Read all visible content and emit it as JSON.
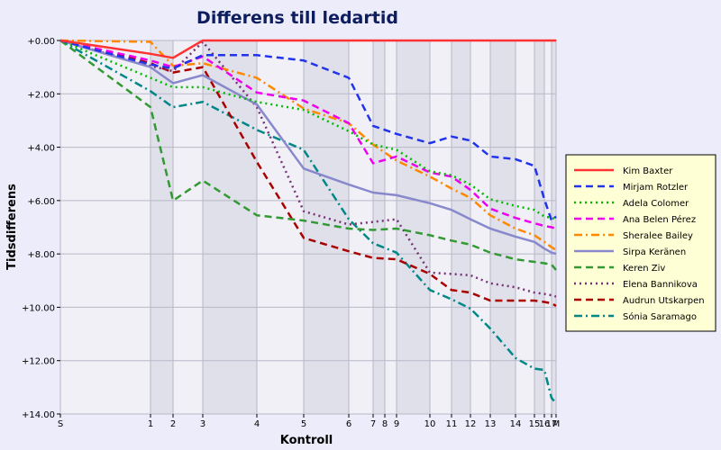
{
  "chart_data": {
    "type": "line",
    "title": "Differens till ledartid",
    "xlabel": "Kontroll",
    "ylabel": "Tidsdifferens",
    "x_ticks": [
      {
        "label": "S",
        "value": 0
      },
      {
        "label": "1",
        "value": 100
      },
      {
        "label": "2",
        "value": 125
      },
      {
        "label": "3",
        "value": 158
      },
      {
        "label": "4",
        "value": 218
      },
      {
        "label": "5",
        "value": 270
      },
      {
        "label": "6",
        "value": 320
      },
      {
        "label": "7",
        "value": 347
      },
      {
        "label": "8",
        "value": 360
      },
      {
        "label": "9",
        "value": 373
      },
      {
        "label": "10",
        "value": 410
      },
      {
        "label": "11",
        "value": 434
      },
      {
        "label": "12",
        "value": 455
      },
      {
        "label": "13",
        "value": 477
      },
      {
        "label": "14",
        "value": 505
      },
      {
        "label": "15",
        "value": 526
      },
      {
        "label": "16",
        "value": 537
      },
      {
        "label": "17",
        "value": 545
      },
      {
        "label": "M",
        "value": 550
      }
    ],
    "y_ticks": [
      "+0.00",
      "+2.00",
      "+4.00",
      "+6.00",
      "+8.00",
      "+10.00",
      "+12.00",
      "+14.00"
    ],
    "ylim": [
      0,
      14
    ],
    "xlim": [
      0,
      550
    ],
    "y_inverted": true,
    "grid": true,
    "legend_position": "right",
    "series": [
      {
        "name": "Kim Baxter",
        "color": "#ff3333",
        "style": "solid",
        "x": [
          0,
          100,
          125,
          158,
          550
        ],
        "y": [
          0,
          0.5,
          0.65,
          0,
          0
        ]
      },
      {
        "name": "Mirjam Rotzler",
        "color": "#2233ee",
        "style": "dash",
        "x": [
          0,
          100,
          125,
          158,
          218,
          270,
          320,
          347,
          373,
          410,
          434,
          455,
          477,
          505,
          526,
          537,
          545,
          550
        ],
        "y": [
          0,
          0.9,
          1.05,
          0.55,
          0.55,
          0.75,
          1.4,
          3.2,
          3.5,
          3.85,
          3.6,
          3.75,
          4.35,
          4.45,
          4.7,
          5.95,
          6.75,
          6.6
        ]
      },
      {
        "name": "Adela Colomer",
        "color": "#00bb00",
        "style": "dot",
        "x": [
          0,
          100,
          125,
          158,
          218,
          270,
          320,
          347,
          373,
          410,
          434,
          455,
          477,
          505,
          526,
          537,
          545,
          550
        ],
        "y": [
          0,
          1.4,
          1.75,
          1.75,
          2.3,
          2.6,
          3.4,
          3.9,
          4.1,
          4.9,
          5.05,
          5.4,
          5.95,
          6.2,
          6.35,
          6.6,
          6.65,
          6.7
        ]
      },
      {
        "name": "Ana Belen Pérez",
        "color": "#ee00ee",
        "style": "dash",
        "x": [
          0,
          100,
          125,
          158,
          218,
          270,
          320,
          347,
          373,
          410,
          434,
          455,
          477,
          505,
          526,
          537,
          545,
          550
        ],
        "y": [
          0,
          0.75,
          1.0,
          0.6,
          1.95,
          2.25,
          3.1,
          4.6,
          4.35,
          4.95,
          5.1,
          5.6,
          6.3,
          6.65,
          6.85,
          6.95,
          7.0,
          7.05
        ]
      },
      {
        "name": "Sheralee Bailey",
        "color": "#ff8800",
        "style": "dashdot",
        "x": [
          0,
          100,
          125,
          158,
          218,
          270,
          320,
          347,
          373,
          410,
          434,
          455,
          477,
          505,
          526,
          537,
          545,
          550
        ],
        "y": [
          0,
          0.05,
          0.95,
          0.85,
          1.4,
          2.55,
          3.1,
          3.9,
          4.5,
          5.1,
          5.55,
          5.9,
          6.55,
          7.05,
          7.3,
          7.55,
          7.75,
          7.85
        ]
      },
      {
        "name": "Sirpa Keränen",
        "color": "#8888cc",
        "style": "solid",
        "x": [
          0,
          100,
          125,
          158,
          218,
          270,
          320,
          347,
          373,
          410,
          434,
          455,
          477,
          505,
          526,
          537,
          545,
          550
        ],
        "y": [
          0,
          1.0,
          1.6,
          1.3,
          2.4,
          4.8,
          5.4,
          5.7,
          5.8,
          6.1,
          6.35,
          6.7,
          7.05,
          7.35,
          7.55,
          7.8,
          7.95,
          8.0
        ]
      },
      {
        "name": "Keren Ziv",
        "color": "#339933",
        "style": "dash",
        "x": [
          0,
          100,
          125,
          158,
          218,
          270,
          320,
          347,
          373,
          410,
          434,
          455,
          477,
          505,
          526,
          537,
          545,
          550
        ],
        "y": [
          0,
          2.5,
          6.0,
          5.25,
          6.55,
          6.75,
          7.05,
          7.1,
          7.05,
          7.3,
          7.5,
          7.65,
          7.95,
          8.2,
          8.3,
          8.35,
          8.4,
          8.6
        ]
      },
      {
        "name": "Elena Bannikova",
        "color": "#773377",
        "style": "dot",
        "x": [
          0,
          100,
          125,
          158,
          218,
          270,
          320,
          347,
          373,
          410,
          434,
          455,
          477,
          505,
          526,
          537,
          545,
          550
        ],
        "y": [
          0,
          0.95,
          1.15,
          0.05,
          2.5,
          6.4,
          6.9,
          6.8,
          6.7,
          8.7,
          8.75,
          8.8,
          9.1,
          9.25,
          9.45,
          9.5,
          9.55,
          9.6
        ]
      },
      {
        "name": "Audrun Utskarpen",
        "color": "#aa0000",
        "style": "dash",
        "x": [
          0,
          100,
          125,
          158,
          218,
          270,
          320,
          347,
          373,
          410,
          434,
          455,
          477,
          505,
          526,
          537,
          545,
          550
        ],
        "y": [
          0,
          0.85,
          1.2,
          1.0,
          4.55,
          7.4,
          7.9,
          8.15,
          8.2,
          8.75,
          9.35,
          9.45,
          9.75,
          9.75,
          9.75,
          9.8,
          9.85,
          9.95
        ]
      },
      {
        "name": "Sónia Saramago",
        "color": "#008888",
        "style": "dashdot",
        "x": [
          0,
          100,
          125,
          158,
          218,
          270,
          320,
          347,
          373,
          410,
          434,
          455,
          477,
          505,
          526,
          537,
          545,
          550
        ],
        "y": [
          0,
          1.9,
          2.5,
          2.3,
          3.35,
          4.1,
          6.7,
          7.6,
          7.95,
          9.35,
          9.7,
          10.05,
          10.8,
          11.9,
          12.3,
          12.35,
          13.4,
          13.6
        ]
      }
    ]
  }
}
